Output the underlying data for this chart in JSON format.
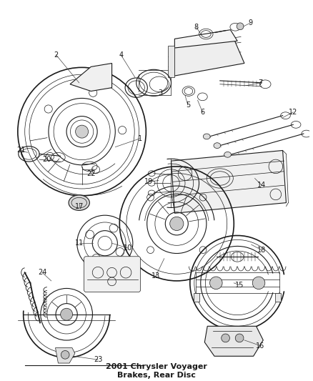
{
  "title": "2001 Chrysler Voyager\nBrakes, Rear Disc",
  "title_fontsize": 8,
  "bg_color": "#ffffff",
  "line_color": "#1a1a1a",
  "label_color": "#1a1a1a",
  "label_fontsize": 7,
  "fig_width": 4.38,
  "fig_height": 5.33,
  "dpi": 100
}
